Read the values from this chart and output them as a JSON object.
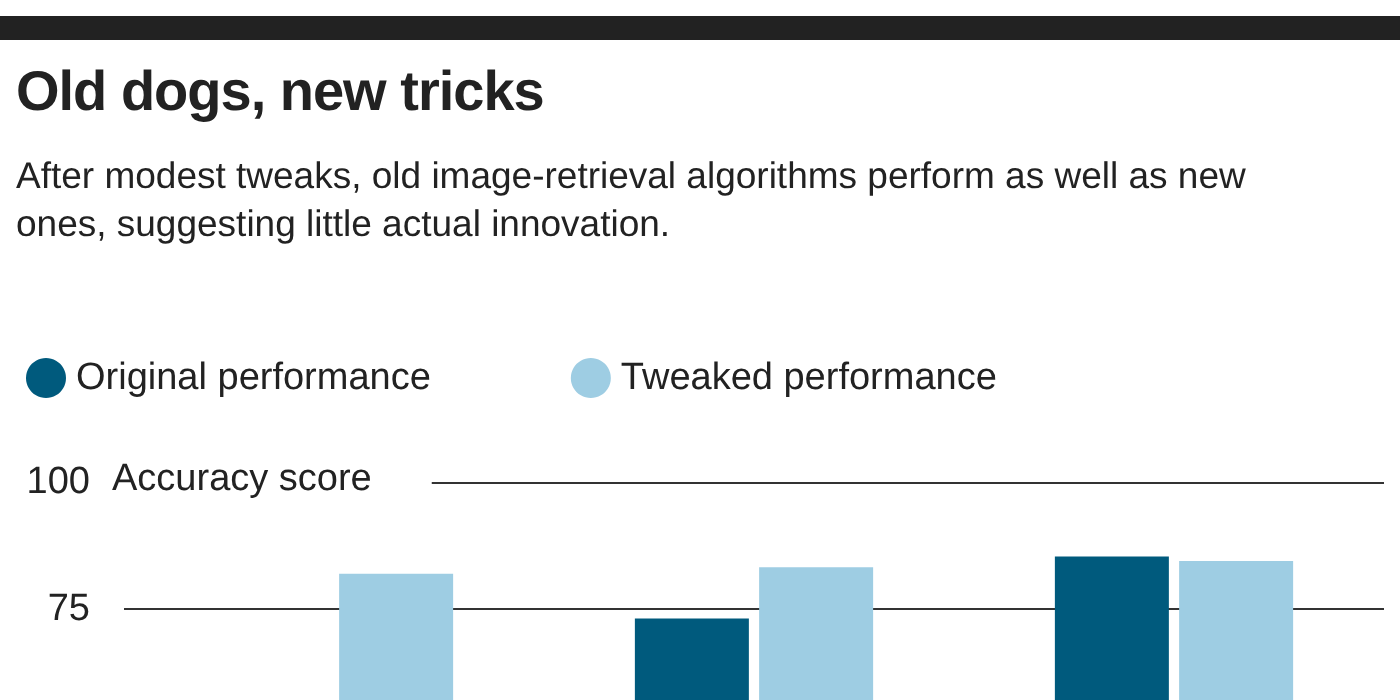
{
  "chart_data": {
    "type": "bar",
    "title": "Old dogs, new tricks",
    "subtitle": "After modest tweaks, old image-retrieval algorithms perform as well as new ones, suggesting little actual innovation.",
    "ylabel": "Accuracy score",
    "categories": [
      null,
      null,
      null
    ],
    "series": [
      {
        "name": "Original performance",
        "color": "#005a7d",
        "values": [
          null,
          73.1,
          85.3
        ]
      },
      {
        "name": "Tweaked performance",
        "color": "#9ecde3",
        "values": [
          81.9,
          83.2,
          84.4
        ]
      }
    ],
    "ylim": [
      57,
      100
    ],
    "yticks": [
      75,
      100
    ],
    "grid": "y",
    "legend": "top left",
    "tick_labels": "y"
  }
}
